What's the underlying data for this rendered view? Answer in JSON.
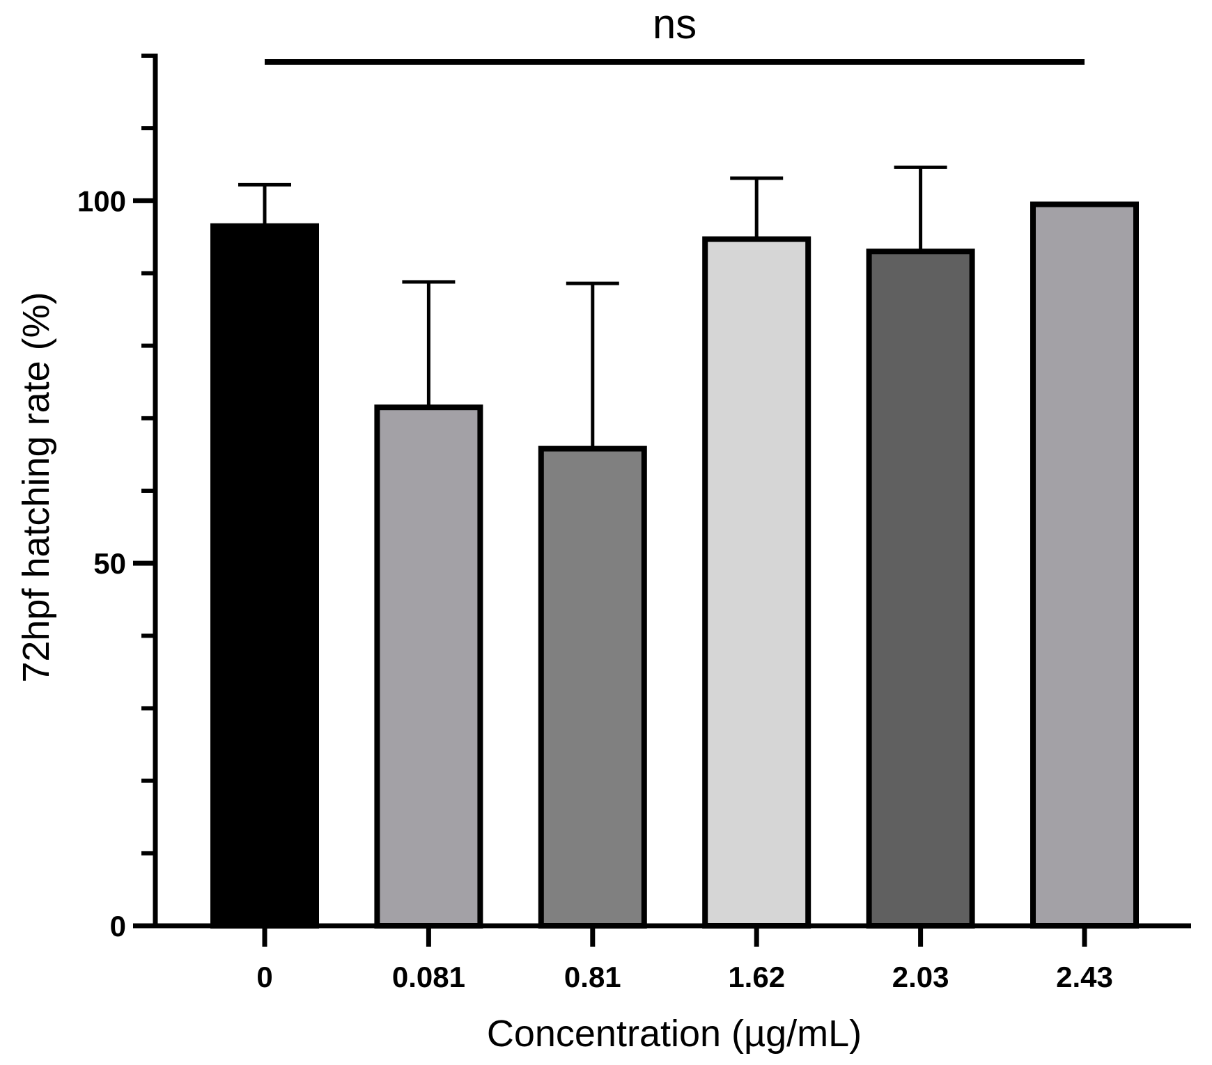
{
  "chart_data": {
    "type": "bar",
    "categories": [
      "0",
      "0.081",
      "0.81",
      "1.62",
      "2.03",
      "2.43"
    ],
    "values": [
      96.5,
      71.5,
      65.8,
      94.7,
      93.0,
      99.5
    ],
    "error_upper": [
      102.2,
      88.8,
      88.6,
      103.1,
      104.6,
      99.5
    ],
    "bar_colors": [
      "#000000",
      "#a3a1a6",
      "#808080",
      "#d6d6d6",
      "#606060",
      "#a3a1a6"
    ],
    "xlabel": "Concentration (µg/mL)",
    "ylabel": "72hpf hatching rate (%)",
    "ylim": [
      0,
      120
    ],
    "yticks_major": [
      0,
      50,
      100
    ],
    "ytick_labels": [
      "0",
      "50",
      "100"
    ],
    "yticks_minor_step": 10,
    "grid": false,
    "annotation": {
      "text": "ns",
      "from_category": "0",
      "to_category": "2.43"
    }
  }
}
